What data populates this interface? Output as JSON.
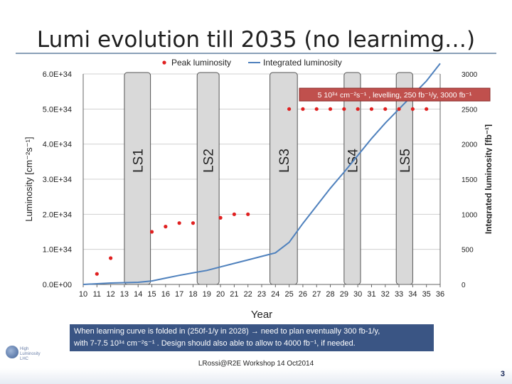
{
  "slide": {
    "title": "Lumi evolution till 2035 (no learnimg…)",
    "note_line1": "When learning curve is folded in (250f-1/y in 2028) → need to plan eventually 300 fb-1/y,",
    "note_line2": "with 7-7.5 10³⁴ cm⁻²s⁻¹ . Design should also able to allow to 4000 fb⁻¹, if needed.",
    "footer": "LRossi@R2E Workshop 14 Oct2014",
    "page_number": "3",
    "logo_text_1": "High",
    "logo_text_2": "Luminosity",
    "logo_text_3": "LHC"
  },
  "chart_data": {
    "type": "line",
    "xlabel": "Year",
    "ylabel": "Luminosity [cm⁻²s⁻¹]",
    "y2label": "Integrated luminosity [fb⁻¹]",
    "x": [
      10,
      11,
      12,
      13,
      14,
      15,
      16,
      17,
      18,
      19,
      20,
      21,
      22,
      23,
      24,
      25,
      26,
      27,
      28,
      29,
      30,
      31,
      32,
      33,
      34,
      35,
      36
    ],
    "x_tick_labels": [
      "10",
      "11",
      "12",
      "13",
      "14",
      "15",
      "16",
      "17",
      "18",
      "19",
      "20",
      "21",
      "22",
      "23",
      "24",
      "25",
      "26",
      "27",
      "28",
      "29",
      "30",
      "31",
      "32",
      "33",
      "34",
      "35",
      "36"
    ],
    "xlim": [
      10,
      36
    ],
    "ylim": [
      0,
      6e+34
    ],
    "y_tick_labels": [
      "0.0E+00",
      "1.0E+34",
      "2.0E+34",
      "3.0E+34",
      "4.0E+34",
      "5.0E+34",
      "6.0E+34"
    ],
    "y2lim": [
      0,
      3000
    ],
    "y2_tick_labels": [
      "0",
      "500",
      "1000",
      "1500",
      "2000",
      "2500",
      "3000"
    ],
    "legend": {
      "position": "top",
      "entries": [
        "Peak luminosity",
        "Integrated luminosity"
      ]
    },
    "colors": {
      "peak": "#e02020",
      "integrated": "#4f81bd",
      "shutdown": "#d9d9d9"
    },
    "series": [
      {
        "name": "Peak luminosity",
        "axis": "left",
        "points": [
          {
            "x": 11,
            "y": 3e+33
          },
          {
            "x": 12,
            "y": 7.5e+33
          },
          {
            "x": 15,
            "y": 1.5e+34
          },
          {
            "x": 16,
            "y": 1.65e+34
          },
          {
            "x": 17,
            "y": 1.75e+34
          },
          {
            "x": 18,
            "y": 1.75e+34
          },
          {
            "x": 20,
            "y": 1.9e+34
          },
          {
            "x": 21,
            "y": 2e+34
          },
          {
            "x": 22,
            "y": 2e+34
          },
          {
            "x": 25,
            "y": 5e+34
          },
          {
            "x": 26,
            "y": 5e+34
          },
          {
            "x": 27,
            "y": 5e+34
          },
          {
            "x": 28,
            "y": 5e+34
          },
          {
            "x": 29,
            "y": 5e+34
          },
          {
            "x": 30,
            "y": 5e+34
          },
          {
            "x": 31,
            "y": 5e+34
          },
          {
            "x": 32,
            "y": 5e+34
          },
          {
            "x": 33,
            "y": 5e+34
          },
          {
            "x": 34,
            "y": 5e+34
          },
          {
            "x": 35,
            "y": 5e+34
          }
        ]
      },
      {
        "name": "Integrated luminosity",
        "axis": "right",
        "points": [
          {
            "x": 10,
            "y": 0
          },
          {
            "x": 12,
            "y": 20
          },
          {
            "x": 13,
            "y": 25
          },
          {
            "x": 14,
            "y": 30
          },
          {
            "x": 15,
            "y": 50
          },
          {
            "x": 16,
            "y": 90
          },
          {
            "x": 17,
            "y": 130
          },
          {
            "x": 18,
            "y": 165
          },
          {
            "x": 19,
            "y": 200
          },
          {
            "x": 20,
            "y": 250
          },
          {
            "x": 21,
            "y": 300
          },
          {
            "x": 22,
            "y": 350
          },
          {
            "x": 23,
            "y": 400
          },
          {
            "x": 24,
            "y": 450
          },
          {
            "x": 25,
            "y": 600
          },
          {
            "x": 26,
            "y": 870
          },
          {
            "x": 27,
            "y": 1120
          },
          {
            "x": 28,
            "y": 1370
          },
          {
            "x": 29,
            "y": 1600
          },
          {
            "x": 30,
            "y": 1840
          },
          {
            "x": 31,
            "y": 2080
          },
          {
            "x": 32,
            "y": 2300
          },
          {
            "x": 33,
            "y": 2500
          },
          {
            "x": 34,
            "y": 2700
          },
          {
            "x": 35,
            "y": 2900
          },
          {
            "x": 36,
            "y": 3150
          }
        ]
      }
    ],
    "shutdowns": [
      {
        "label": "LS1",
        "start": 13.0,
        "end": 14.9
      },
      {
        "label": "LS2",
        "start": 18.3,
        "end": 19.9
      },
      {
        "label": "LS3",
        "start": 23.6,
        "end": 25.6
      },
      {
        "label": "LS4",
        "start": 29.0,
        "end": 30.2
      },
      {
        "label": "LS5",
        "start": 32.8,
        "end": 34.0
      }
    ],
    "annotation": "5 10³⁴ cm⁻²s⁻¹ , levelling, 250 fb⁻¹/y, 3000 fb⁻¹"
  }
}
